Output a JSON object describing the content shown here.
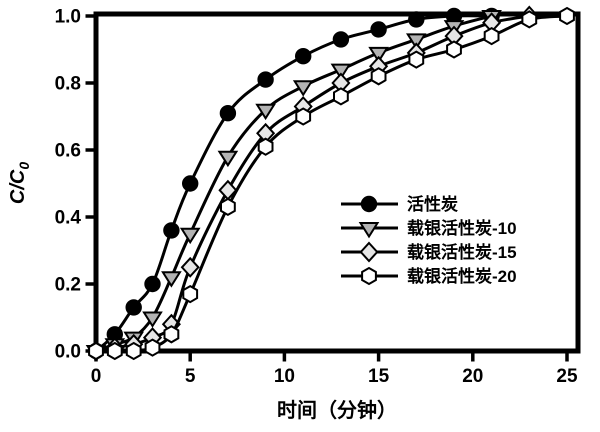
{
  "figure": {
    "background": "#ffffff",
    "frame_color": "#000000",
    "text_color": "#000000"
  },
  "chart_data": {
    "type": "line",
    "title": "",
    "xlabel": "时间（分钟）",
    "ylabel": "C/C0",
    "ylabel_main": "C/C",
    "ylabel_sub": "0",
    "xlim": [
      0,
      25
    ],
    "ylim": [
      0.0,
      1.0
    ],
    "x_ticks": [
      0,
      5,
      10,
      15,
      20,
      25
    ],
    "y_ticks": [
      0.0,
      0.2,
      0.4,
      0.6,
      0.8,
      1.0
    ],
    "x_tick_labels": [
      "0",
      "5",
      "10",
      "15",
      "20",
      "25"
    ],
    "y_tick_labels": [
      "0.0",
      "0.2",
      "0.4",
      "0.6",
      "0.8",
      "1.0"
    ],
    "grid": false,
    "legend_position": "inside-center-right",
    "series": [
      {
        "name": "活性炭",
        "marker": "circle",
        "marker_fill": "#000000",
        "line_color": "#000000",
        "x": [
          0,
          1,
          2,
          3,
          4,
          5,
          7,
          9,
          11,
          13,
          15,
          17,
          19,
          21
        ],
        "y": [
          0.0,
          0.05,
          0.13,
          0.2,
          0.36,
          0.5,
          0.71,
          0.81,
          0.88,
          0.93,
          0.96,
          0.99,
          1.0,
          1.0
        ]
      },
      {
        "name": "载银活性炭-10",
        "marker": "triangle-down",
        "marker_fill": "#b3b3b3",
        "line_color": "#000000",
        "x": [
          0,
          1,
          2,
          3,
          4,
          5,
          7,
          9,
          11,
          13,
          15,
          17,
          19,
          21
        ],
        "y": [
          0.0,
          0.02,
          0.04,
          0.1,
          0.22,
          0.35,
          0.58,
          0.72,
          0.79,
          0.84,
          0.89,
          0.93,
          0.97,
          1.0
        ]
      },
      {
        "name": "载银活性炭-15",
        "marker": "diamond",
        "marker_fill": "#e6e6e6",
        "line_color": "#000000",
        "x": [
          0,
          1,
          2,
          3,
          4,
          5,
          7,
          9,
          11,
          13,
          15,
          17,
          19,
          21,
          23
        ],
        "y": [
          0.0,
          0.01,
          0.02,
          0.04,
          0.08,
          0.25,
          0.48,
          0.65,
          0.73,
          0.8,
          0.85,
          0.89,
          0.94,
          0.98,
          1.0
        ]
      },
      {
        "name": "载银活性炭-20",
        "marker": "hexagon",
        "marker_fill": "#ffffff",
        "line_color": "#000000",
        "x": [
          0,
          1,
          2,
          3,
          4,
          5,
          7,
          9,
          11,
          13,
          15,
          17,
          19,
          21,
          23,
          25
        ],
        "y": [
          0.0,
          0.0,
          0.0,
          0.01,
          0.05,
          0.17,
          0.43,
          0.61,
          0.7,
          0.76,
          0.82,
          0.87,
          0.9,
          0.94,
          0.99,
          1.0
        ]
      }
    ]
  }
}
